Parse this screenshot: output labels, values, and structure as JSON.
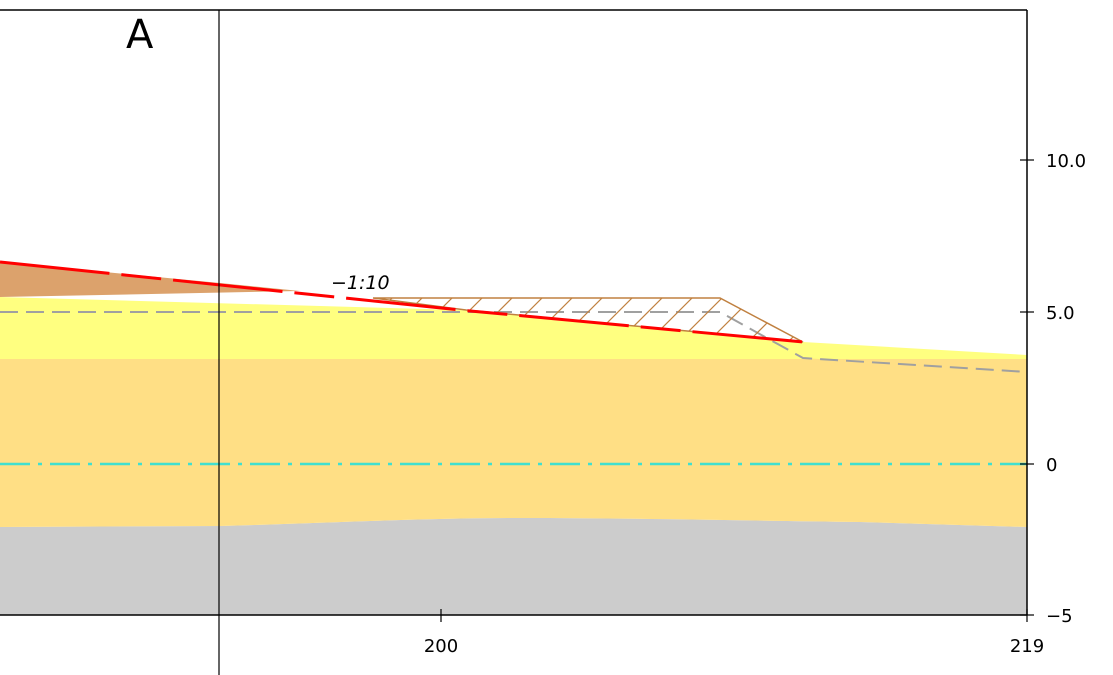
{
  "section_label": "A",
  "slope_annotation": "−1:10",
  "y_axis": {
    "ticks": [
      {
        "value": 10.0,
        "label": "10.0"
      },
      {
        "value": 5.0,
        "label": "5.0"
      },
      {
        "value": 0,
        "label": "0"
      },
      {
        "value": -5,
        "label": "−5"
      }
    ]
  },
  "x_axis": {
    "ticks": [
      {
        "value": 200,
        "label": "200"
      },
      {
        "value": 219,
        "label": "219"
      }
    ]
  },
  "colors": {
    "clay_fill": "#dca26c",
    "sand_light": "#ffff80",
    "sand_dark": "#ffdf85",
    "bedrock": "#cccccc",
    "design_line": "#ff0000",
    "existing_ground": "#a0a0a0",
    "water_level": "#40e0d0",
    "fill_hatch": "#c08040"
  }
}
